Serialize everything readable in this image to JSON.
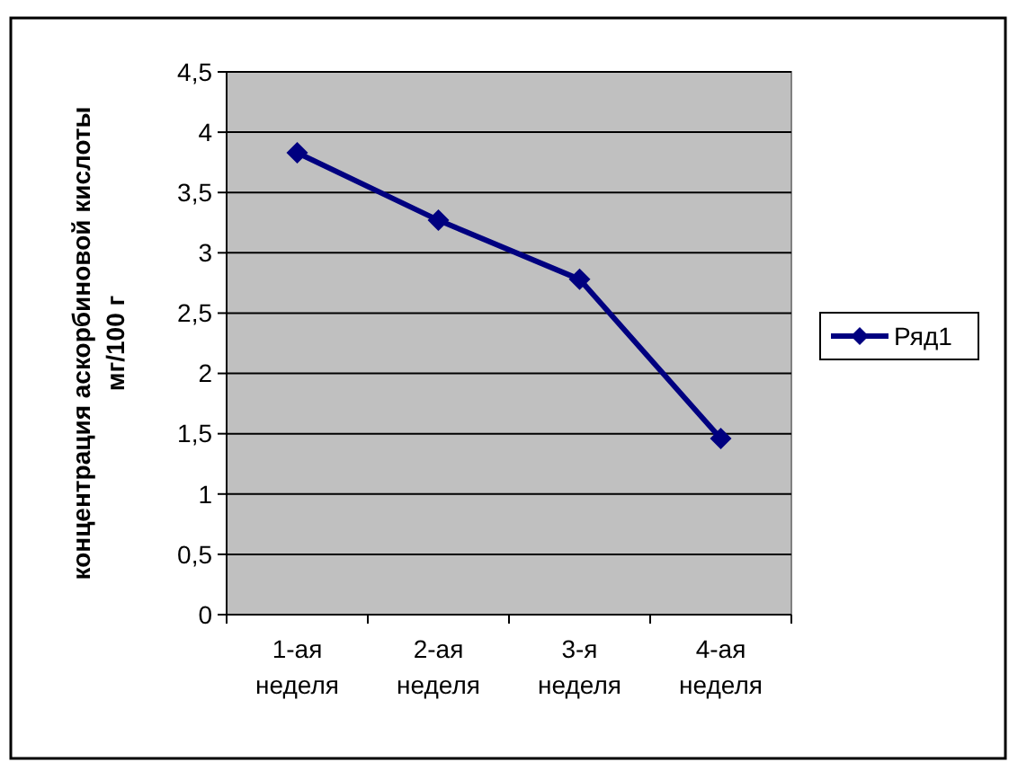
{
  "chart_data": {
    "type": "line",
    "ylabel": "концентрация аскорбиновой кислоты мг/100 г",
    "categories": [
      "1-ая неделя",
      "2-ая неделя",
      "3-я неделя",
      "4-ая неделя"
    ],
    "series": [
      {
        "name": "Ряд1",
        "color": "#000080",
        "values": [
          3.83,
          3.27,
          2.78,
          1.46
        ]
      }
    ],
    "ylim": [
      0,
      4.5
    ],
    "yticks": [
      0,
      {
        "value": 0.5,
        "label": "0,5"
      },
      1,
      {
        "value": 1.5,
        "label": "1,5"
      },
      2,
      {
        "value": 2.5,
        "label": "2,5"
      },
      3,
      {
        "value": 3.5,
        "label": "3,5"
      },
      4,
      {
        "value": 4.5,
        "label": "4,5"
      }
    ],
    "grid": "y",
    "legend": "right",
    "marker": "diamond",
    "line_style": "solid"
  }
}
